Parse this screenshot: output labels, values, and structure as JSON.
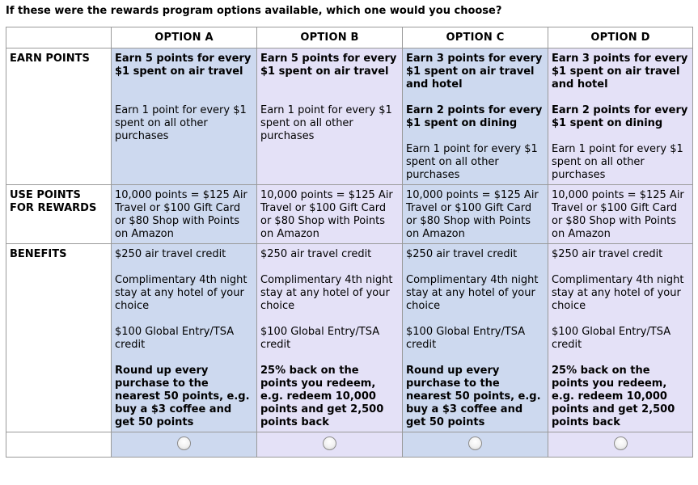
{
  "question": "If these were the rewards program options available, which one would you choose?",
  "options": [
    {
      "label": "OPTION A"
    },
    {
      "label": "OPTION B"
    },
    {
      "label": "OPTION C"
    },
    {
      "label": "OPTION D"
    }
  ],
  "rows": {
    "earn": {
      "label": "EARN POINTS",
      "cells": [
        [
          "Earn 5 points for every $1 spent on air travel",
          "Earn 1 point for every $1 spent on all other purchases"
        ],
        [
          "Earn 5 points for every $1 spent on air travel",
          "Earn 1 point for every $1 spent on all other purchases"
        ],
        [
          "Earn 3 points for every $1 spent on air travel and hotel",
          "Earn 2 points for every $1 spent on dining",
          "Earn 1 point for every $1 spent on all other purchases"
        ],
        [
          "Earn 3 points for every $1 spent on air travel and hotel",
          "Earn 2 points for every $1 spent on dining",
          "Earn 1 point for every $1 spent on all other purchases"
        ]
      ]
    },
    "use": {
      "label": "USE POINTS FOR REWARDS",
      "cells": [
        "10,000 points = $125 Air Travel or $100 Gift Card or $80 Shop with Points on Amazon",
        "10,000 points = $125 Air Travel or $100 Gift Card or $80 Shop with Points on Amazon",
        "10,000 points = $125 Air Travel or $100 Gift Card or $80 Shop with Points on Amazon",
        "10,000 points = $125 Air Travel or $100 Gift Card or $80 Shop with Points on Amazon"
      ]
    },
    "benefits": {
      "label": "BENEFITS",
      "cells": [
        [
          "$250 air travel credit",
          "Complimentary 4th night stay at any hotel of your choice",
          "$100 Global Entry/TSA credit",
          "Round up every purchase to the nearest 50 points, e.g. buy a $3 coffee and get 50 points"
        ],
        [
          "$250 air travel credit",
          "Complimentary 4th night stay at any hotel of your choice",
          "$100 Global Entry/TSA credit",
          "25% back on the points you redeem, e.g. redeem 10,000 points and get 2,500 points back"
        ],
        [
          "$250 air travel credit",
          "Complimentary 4th night stay at any hotel of your choice",
          "$100 Global Entry/TSA credit",
          "Round up every purchase to the nearest 50 points, e.g. buy a $3 coffee and get 50 points"
        ],
        [
          "$250 air travel credit",
          "Complimentary 4th night stay at any hotel of your choice",
          "$100 Global Entry/TSA credit",
          "25% back on the points you redeem, e.g. redeem 10,000 points and get 2,500 points back"
        ]
      ]
    }
  },
  "colors": {
    "option_ac_bg": "#cdd9ef",
    "option_bd_bg": "#e4e1f7",
    "border": "#9a9a9a"
  }
}
